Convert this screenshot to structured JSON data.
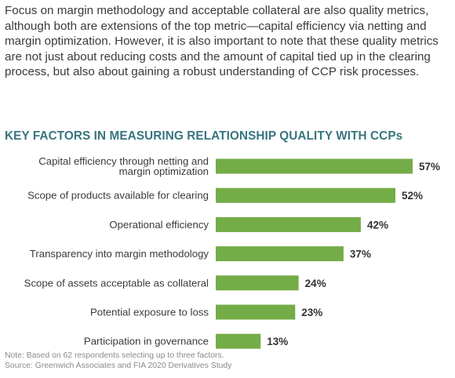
{
  "intro_text": "Focus on margin methodology and acceptable collateral are also quality metrics, although both are extensions of the top metric—capital efficiency via netting and margin optimization. However, it is also important to note that these quality metrics are not just about reducing costs and the amount of capital tied up in the clearing process, but also about gaining a robust understanding of CCP risk processes.",
  "footnote": {
    "note": "Note: Based on 62 respondents selecting up to three factors.",
    "source": "Source: Greenwich Associates and FIA 2020 Derivatives Study"
  },
  "colors": {
    "bar": "#74ac47",
    "title": "#37757f",
    "label": "#3a3a3a",
    "value": "#333333"
  },
  "chart_data": {
    "type": "bar",
    "orientation": "horizontal",
    "title": "KEY FACTORS IN MEASURING RELATIONSHIP QUALITY WITH CCPs",
    "categories": [
      [
        "Capital efficiency through netting and",
        "margin optimization"
      ],
      [
        "Scope of products available for clearing"
      ],
      [
        "Operational efficiency"
      ],
      [
        "Transparency into margin methodology"
      ],
      [
        "Scope of assets acceptable as collateral"
      ],
      [
        "Potential exposure to loss"
      ],
      [
        "Participation in governance"
      ]
    ],
    "values": [
      57,
      52,
      42,
      37,
      24,
      23,
      13
    ],
    "value_labels": [
      "57%",
      "52%",
      "42%",
      "37%",
      "24%",
      "23%",
      "13%"
    ],
    "xlim": [
      0,
      57
    ],
    "grid": false,
    "legend": "none"
  }
}
